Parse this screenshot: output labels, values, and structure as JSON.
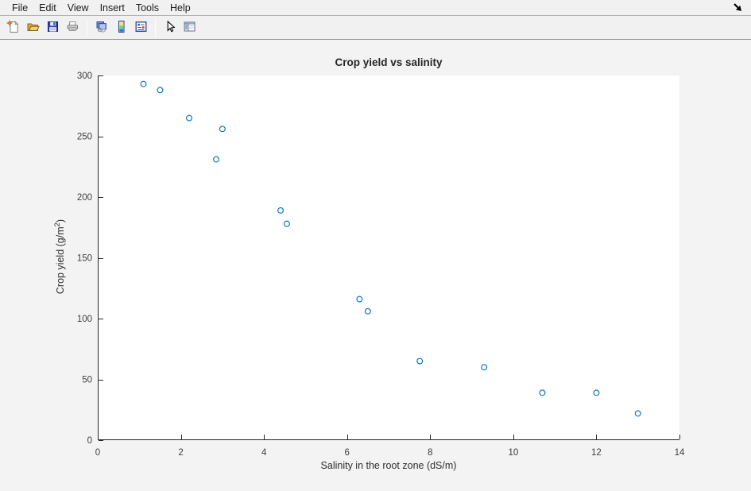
{
  "menubar": {
    "items": [
      "File",
      "Edit",
      "View",
      "Insert",
      "Tools",
      "Help"
    ]
  },
  "toolbar": {
    "buttons": [
      "new-figure",
      "open-file",
      "save-figure",
      "print-figure",
      "link-plot",
      "insert-colorbar",
      "insert-legend",
      "edit-plot",
      "show-plot-tools"
    ]
  },
  "colors": {
    "axis": "#262626",
    "marker": "#0b72bd",
    "figure_bg": "#f3f3f3",
    "plot_bg": "#ffffff"
  },
  "chart_data": {
    "type": "scatter",
    "title": "Crop yield vs salinity",
    "xlabel": "Salinity in the root zone (dS/m)",
    "ylabel": "Crop yield (g/m^2)",
    "ylabel_parts": {
      "pre": "Crop  yield  (g/m",
      "sup": "2",
      "post": ")"
    },
    "xlim": [
      0,
      14
    ],
    "ylim": [
      0,
      300
    ],
    "xticks": [
      0,
      2,
      4,
      6,
      8,
      10,
      12,
      14
    ],
    "yticks": [
      0,
      50,
      100,
      150,
      200,
      250,
      300
    ],
    "grid": false,
    "legend": null,
    "marker": "open-circle",
    "points": [
      [
        1.1,
        293
      ],
      [
        1.5,
        288
      ],
      [
        2.2,
        265
      ],
      [
        2.85,
        231
      ],
      [
        3.0,
        256
      ],
      [
        4.4,
        189
      ],
      [
        4.55,
        178
      ],
      [
        6.3,
        116
      ],
      [
        6.5,
        106
      ],
      [
        7.75,
        65
      ],
      [
        9.3,
        60
      ],
      [
        10.7,
        39
      ],
      [
        12.0,
        39
      ],
      [
        13.0,
        22
      ]
    ]
  }
}
